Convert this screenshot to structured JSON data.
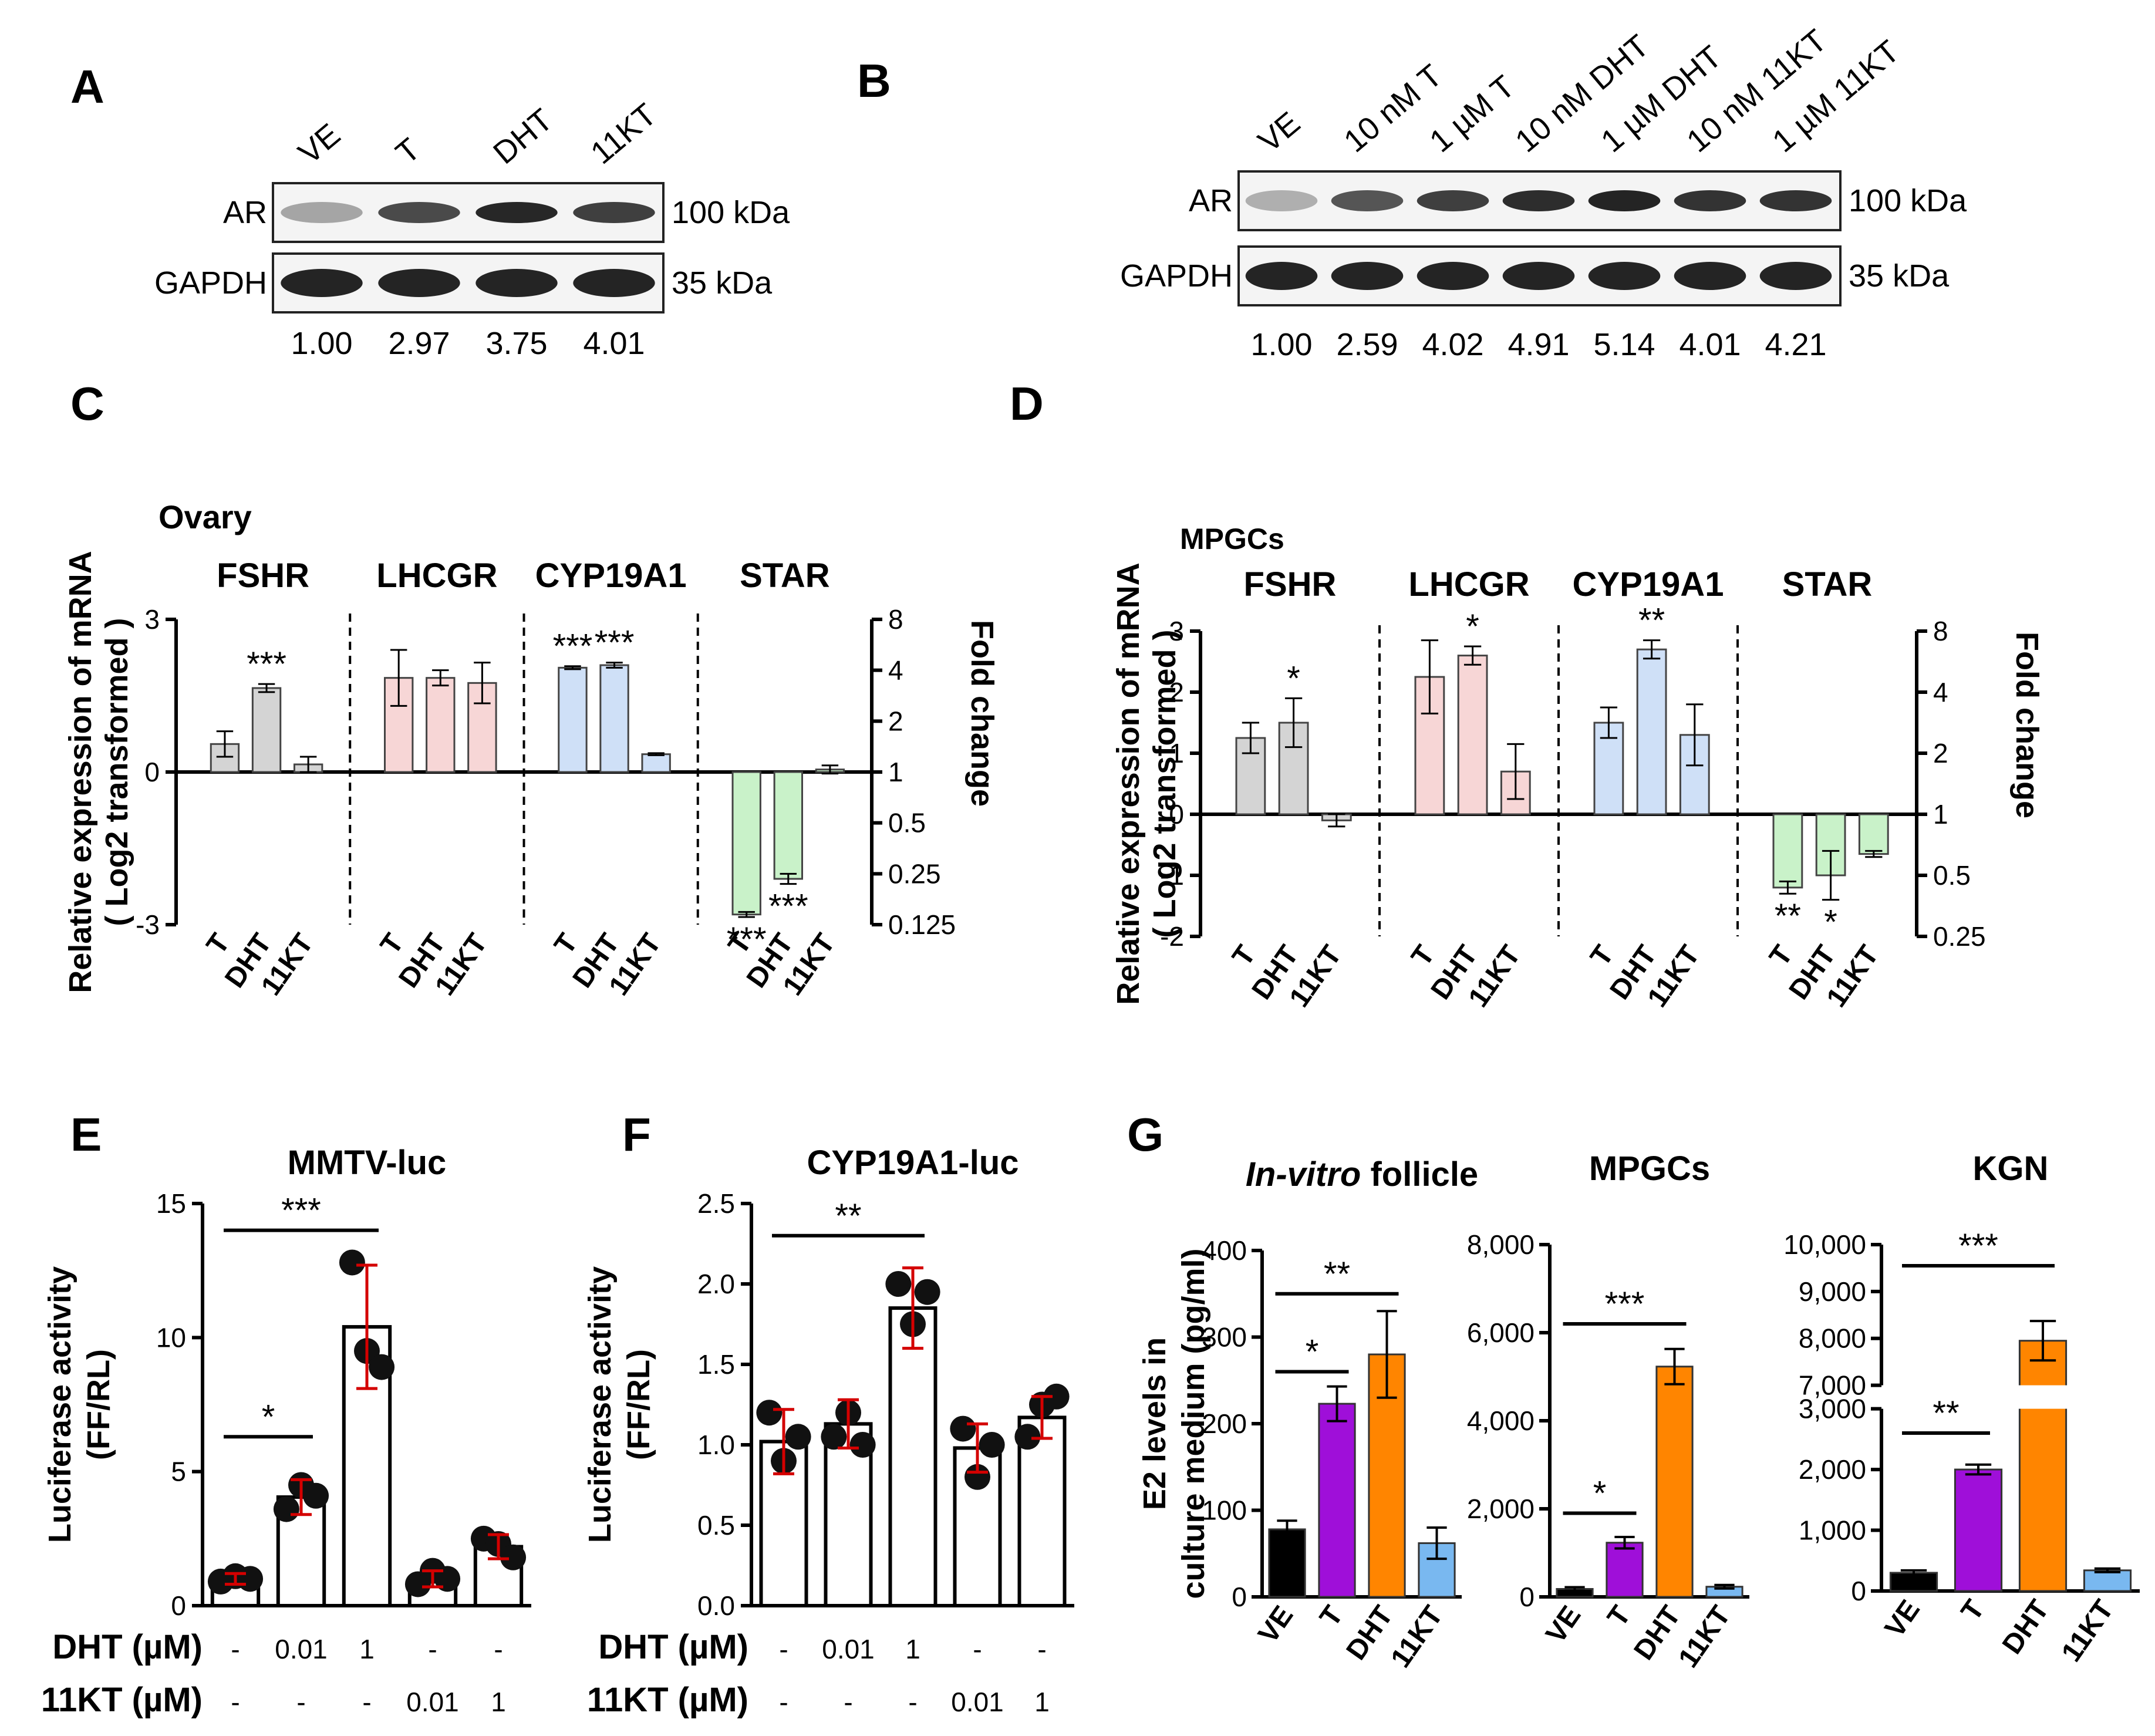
{
  "panels": {
    "A": "A",
    "B": "B",
    "C": "C",
    "D": "D",
    "E": "E",
    "F": "F",
    "G": "G"
  },
  "blotA": {
    "lanes": [
      "VE",
      "T",
      "DHT",
      "11KT"
    ],
    "rows": [
      "AR",
      "GAPDH"
    ],
    "sizes": [
      "100 kDa",
      "35 kDa"
    ],
    "quant": [
      "1.00",
      "2.97",
      "3.75",
      "4.01"
    ],
    "ar_intensity": [
      0.35,
      0.75,
      0.9,
      0.8
    ]
  },
  "blotB": {
    "lanes": [
      "VE",
      "10 nM T",
      "1 µM T",
      "10 nM DHT",
      "1 µM DHT",
      "10 nM 11KT",
      "1 µM 11KT"
    ],
    "rows": [
      "AR",
      "GAPDH"
    ],
    "sizes": [
      "100 kDa",
      "35 kDa"
    ],
    "quant": [
      "1.00",
      "2.59",
      "4.02",
      "4.91",
      "5.14",
      "4.01",
      "4.21"
    ],
    "ar_intensity": [
      0.3,
      0.7,
      0.8,
      0.88,
      0.92,
      0.85,
      0.85
    ]
  },
  "colors": {
    "grey": "#d4d4d4",
    "pink": "#f7d6d6",
    "blue": "#cfe0f7",
    "green": "#c9f2c9",
    "purple": "#9f0fd9",
    "orange": "#ff8500",
    "lightblue": "#79b8f0",
    "black": "#000000",
    "red": "#d40000"
  },
  "chart_data": [
    {
      "id": "C",
      "type": "bar",
      "title": "Ovary",
      "ylabel": [
        "Relative expression of mRNA",
        "( Log2 transformed )"
      ],
      "y2label": "Fold change",
      "ylim": [
        -3,
        3
      ],
      "yticks": [
        "-3",
        "0",
        "3"
      ],
      "y2ticks": [
        "8",
        "4",
        "2",
        "1",
        "0.5",
        "0.25",
        "0.125"
      ],
      "groups": [
        "FSHR",
        "LHCGR",
        "CYP19A1",
        "STAR"
      ],
      "categories": [
        "T",
        "DHT",
        "11KT"
      ],
      "series": [
        {
          "name": "FSHR",
          "values": [
            0.55,
            1.65,
            0.15
          ],
          "err": [
            0.25,
            0.08,
            0.15
          ],
          "sig": [
            "",
            "***",
            ""
          ],
          "color": "#d4d4d4"
        },
        {
          "name": "LHCGR",
          "values": [
            1.85,
            1.85,
            1.75
          ],
          "err": [
            0.55,
            0.15,
            0.4
          ],
          "sig": [
            "",
            "",
            ""
          ],
          "color": "#f7d6d6"
        },
        {
          "name": "CYP19A1",
          "values": [
            2.05,
            2.1,
            0.35
          ],
          "err": [
            0.03,
            0.05,
            0.02
          ],
          "sig": [
            "***",
            "***",
            ""
          ],
          "color": "#cfe0f7"
        },
        {
          "name": "STAR",
          "values": [
            -2.8,
            -2.1,
            0.05
          ],
          "err": [
            0.05,
            0.1,
            0.08
          ],
          "sig": [
            "***",
            "***",
            ""
          ],
          "color": "#c9f2c9"
        }
      ]
    },
    {
      "id": "D",
      "type": "bar",
      "title": "MPGCs",
      "ylabel": [
        "Relative expression of mRNA",
        "( Log2 transformed )"
      ],
      "y2label": "Fold change",
      "ylim": [
        -2,
        3
      ],
      "yticks": [
        "-2",
        "-1",
        "0",
        "1",
        "2",
        "3"
      ],
      "y2ticks": [
        "8",
        "4",
        "2",
        "1",
        "0.5",
        "0.25"
      ],
      "groups": [
        "FSHR",
        "LHCGR",
        "CYP19A1",
        "STAR"
      ],
      "categories": [
        "T",
        "DHT",
        "11KT"
      ],
      "series": [
        {
          "name": "FSHR",
          "values": [
            1.25,
            1.5,
            -0.1
          ],
          "err": [
            0.25,
            0.4,
            0.1
          ],
          "sig": [
            "",
            "*",
            ""
          ],
          "color": "#d4d4d4"
        },
        {
          "name": "LHCGR",
          "values": [
            2.25,
            2.6,
            0.7
          ],
          "err": [
            0.6,
            0.15,
            0.45
          ],
          "sig": [
            "",
            "*",
            ""
          ],
          "color": "#f7d6d6"
        },
        {
          "name": "CYP19A1",
          "values": [
            1.5,
            2.7,
            1.3
          ],
          "err": [
            0.25,
            0.15,
            0.5
          ],
          "sig": [
            "",
            "**",
            ""
          ],
          "color": "#cfe0f7"
        },
        {
          "name": "STAR",
          "values": [
            -1.2,
            -1.0,
            -0.65
          ],
          "err": [
            0.1,
            0.4,
            0.05
          ],
          "sig": [
            "**",
            "*",
            ""
          ],
          "color": "#c9f2c9"
        }
      ]
    },
    {
      "id": "E",
      "type": "bar",
      "title": "MMTV-luc",
      "ylabel": [
        "Luciferase activity",
        "(FF/RL)"
      ],
      "ylim": [
        0,
        15
      ],
      "yticks": [
        "0",
        "5",
        "10",
        "15"
      ],
      "row1_label": "DHT (µM)",
      "row1": [
        "-",
        "0.01",
        "1",
        "-",
        "-"
      ],
      "row2_label": "11KT (µM)",
      "row2": [
        "-",
        "-",
        "-",
        "0.01",
        "1"
      ],
      "values": [
        1.0,
        4.05,
        10.4,
        1.0,
        2.2
      ],
      "err": [
        0.2,
        0.65,
        2.3,
        0.3,
        0.45
      ],
      "points": [
        [
          0.9,
          1.1,
          1.0
        ],
        [
          3.6,
          4.5,
          4.1
        ],
        [
          12.8,
          9.5,
          8.9
        ],
        [
          0.8,
          1.3,
          1.0
        ],
        [
          2.5,
          2.3,
          1.8
        ]
      ],
      "sig": [
        {
          "from": 0,
          "to": 1,
          "label": "*",
          "y": 6.3
        },
        {
          "from": 0,
          "to": 2,
          "label": "***",
          "y": 14.0
        }
      ]
    },
    {
      "id": "F",
      "type": "bar",
      "title": "CYP19A1-luc",
      "ylabel": [
        "Luciferase activity",
        "(FF/RL)"
      ],
      "ylim": [
        0,
        2.5
      ],
      "yticks": [
        "0.0",
        "0.5",
        "1.0",
        "1.5",
        "2.0",
        "2.5"
      ],
      "row1_label": "DHT (µM)",
      "row1": [
        "-",
        "0.01",
        "1",
        "-",
        "-"
      ],
      "row2_label": "11KT (µM)",
      "row2": [
        "-",
        "-",
        "-",
        "0.01",
        "1"
      ],
      "values": [
        1.02,
        1.13,
        1.85,
        0.98,
        1.17
      ],
      "err": [
        0.2,
        0.15,
        0.25,
        0.15,
        0.13
      ],
      "points": [
        [
          1.2,
          0.9,
          1.05
        ],
        [
          1.05,
          1.2,
          1.0
        ],
        [
          2.0,
          1.75,
          1.95
        ],
        [
          1.1,
          0.8,
          1.0
        ],
        [
          1.05,
          1.25,
          1.3
        ]
      ],
      "sig": [
        {
          "from": 0,
          "to": 2,
          "label": "**",
          "y": 2.3
        }
      ]
    },
    {
      "id": "G1",
      "type": "bar",
      "title_italic": "In-vitro",
      "title_rest": " follicle",
      "ylabel": [
        "E2 levels in",
        "culture medium (pg/ml)"
      ],
      "ylim": [
        0,
        400
      ],
      "yticks": [
        "0",
        "100",
        "200",
        "300",
        "400"
      ],
      "categories": [
        "VE",
        "T",
        "DHT",
        "11KT"
      ],
      "values": [
        78,
        223,
        280,
        62
      ],
      "err": [
        10,
        20,
        50,
        18
      ],
      "sig": [
        {
          "from": 0,
          "to": 1,
          "label": "*",
          "y": 260
        },
        {
          "from": 0,
          "to": 2,
          "label": "**",
          "y": 350
        }
      ]
    },
    {
      "id": "G2",
      "type": "bar",
      "title": "MPGCs",
      "ylim": [
        0,
        8000
      ],
      "yticks": [
        "0",
        "2,000",
        "4,000",
        "6,000",
        "8,000"
      ],
      "categories": [
        "VE",
        "T",
        "DHT",
        "11KT"
      ],
      "values": [
        180,
        1230,
        5230,
        230
      ],
      "err": [
        40,
        130,
        400,
        40
      ],
      "sig": [
        {
          "from": 0,
          "to": 1,
          "label": "*",
          "y": 1900
        },
        {
          "from": 0,
          "to": 2,
          "label": "***",
          "y": 6200
        }
      ]
    },
    {
      "id": "G3",
      "type": "bar",
      "title": "KGN",
      "axis_break": {
        "lower": [
          0,
          3000
        ],
        "upper": [
          7000,
          10000
        ]
      },
      "yticks_lower": [
        "0",
        "1,000",
        "2,000",
        "3,000"
      ],
      "yticks_upper": [
        "7,000",
        "8,000",
        "9,000",
        "10,000"
      ],
      "categories": [
        "VE",
        "T",
        "DHT",
        "11KT"
      ],
      "values": [
        300,
        2000,
        7950,
        340
      ],
      "err": [
        40,
        80,
        420,
        30
      ],
      "sig": [
        {
          "from": 0,
          "to": 1,
          "label": "**",
          "y": 2600
        },
        {
          "from": 0,
          "to": 2,
          "label": "***",
          "y": 9550
        }
      ]
    }
  ]
}
